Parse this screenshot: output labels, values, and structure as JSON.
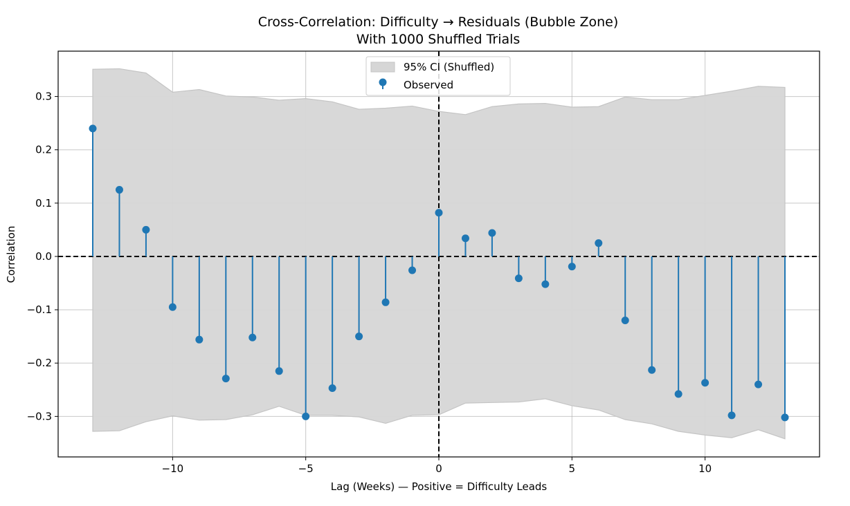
{
  "chart_data": {
    "type": "stem",
    "title_line1": "Cross-Correlation: Difficulty → Residuals (Bubble Zone)",
    "title_line2": "With 1000 Shuffled Trials",
    "xlabel": "Lag (Weeks) — Positive = Difficulty Leads",
    "ylabel": "Correlation",
    "xlim": [
      -14.3,
      14.3
    ],
    "ylim": [
      -0.376,
      0.385
    ],
    "xticks": [
      -10,
      -5,
      0,
      5,
      10
    ],
    "xtick_labels": [
      "−10",
      "−5",
      "0",
      "5",
      "10"
    ],
    "yticks": [
      -0.3,
      -0.2,
      -0.1,
      0.0,
      0.1,
      0.2,
      0.3
    ],
    "ytick_labels": [
      "−0.3",
      "−0.2",
      "−0.1",
      "0.0",
      "0.1",
      "0.2",
      "0.3"
    ],
    "grid": true,
    "legend_position": "top-center",
    "legend": {
      "ci_label": "95% CI (Shuffled)",
      "observed_label": "Observed"
    },
    "colors": {
      "observed": "#1f77b4",
      "ci_fill": "#d6d6d6",
      "ci_edge": "#c4c4c4",
      "reference_lines": "#000000",
      "grid": "#b0b0b0"
    },
    "lags": [
      -13,
      -12,
      -11,
      -10,
      -9,
      -8,
      -7,
      -6,
      -5,
      -4,
      -3,
      -2,
      -1,
      0,
      1,
      2,
      3,
      4,
      5,
      6,
      7,
      8,
      9,
      10,
      11,
      12,
      13
    ],
    "observed": [
      0.24,
      0.125,
      0.05,
      -0.095,
      -0.156,
      -0.229,
      -0.152,
      -0.215,
      -0.3,
      -0.247,
      -0.15,
      -0.086,
      -0.026,
      0.082,
      0.034,
      0.044,
      -0.041,
      -0.052,
      -0.019,
      0.025,
      -0.12,
      -0.213,
      -0.258,
      -0.237,
      -0.298,
      -0.24,
      -0.302
    ],
    "ci_upper": [
      0.351,
      0.352,
      0.344,
      0.308,
      0.313,
      0.301,
      0.299,
      0.293,
      0.296,
      0.29,
      0.276,
      0.278,
      0.282,
      0.272,
      0.266,
      0.281,
      0.286,
      0.287,
      0.28,
      0.281,
      0.299,
      0.294,
      0.294,
      0.302,
      0.31,
      0.319,
      0.317
    ],
    "ci_lower": [
      -0.328,
      -0.327,
      -0.31,
      -0.299,
      -0.307,
      -0.306,
      -0.297,
      -0.281,
      -0.298,
      -0.298,
      -0.301,
      -0.313,
      -0.298,
      -0.297,
      -0.275,
      -0.274,
      -0.273,
      -0.267,
      -0.28,
      -0.288,
      -0.306,
      -0.314,
      -0.328,
      -0.335,
      -0.34,
      -0.325,
      -0.342
    ]
  }
}
